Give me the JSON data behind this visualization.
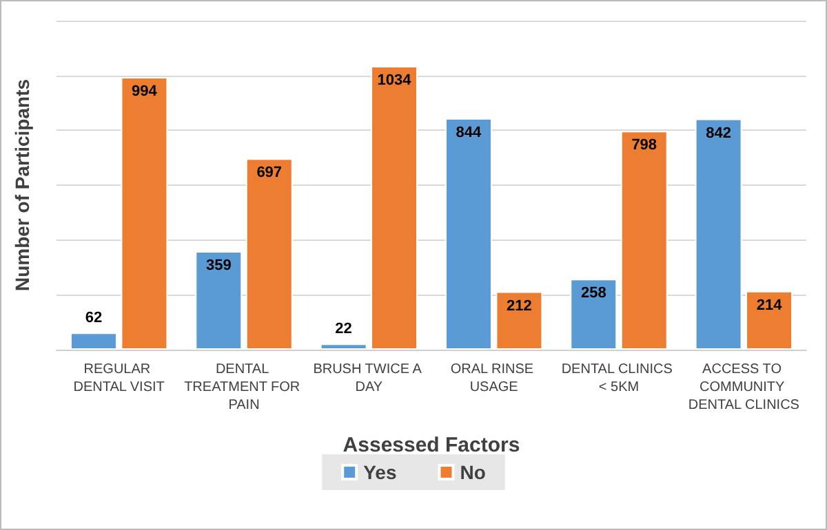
{
  "chart_data": {
    "type": "bar",
    "xlabel": "Assessed Factors",
    "ylabel": "Number of Participants",
    "categories": [
      "REGULAR DENTAL VISIT",
      "DENTAL TREATMENT FOR PAIN",
      "BRUSH TWICE A DAY",
      "ORAL RINSE USAGE",
      "DENTAL CLINICS < 5KM",
      "ACCESS TO COMMUNITY DENTAL CLINICS"
    ],
    "series": [
      {
        "name": "Yes",
        "color": "#5b9bd5",
        "values": [
          62,
          359,
          22,
          844,
          258,
          842
        ]
      },
      {
        "name": "No",
        "color": "#ed7d31",
        "values": [
          994,
          697,
          1034,
          212,
          798,
          214
        ]
      }
    ],
    "ylim": [
      0,
      1200
    ],
    "yticks": [
      0,
      200,
      400,
      600,
      800,
      1000,
      1200
    ],
    "tick_labels": "x",
    "grid": "y",
    "legend": "bottom",
    "data_labels": true
  }
}
